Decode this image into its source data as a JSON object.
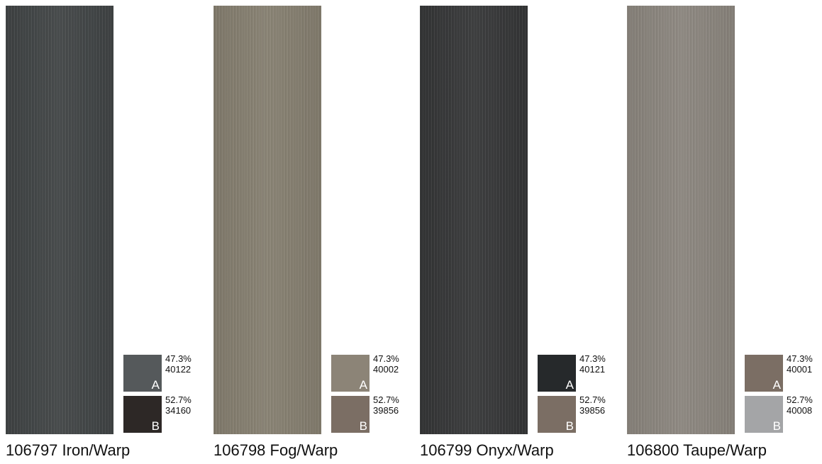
{
  "products": [
    {
      "label": "106797 Iron/Warp",
      "swatch_color": "#3e4243",
      "yarns": [
        {
          "letter": "A",
          "percent": "47.3%",
          "code": "40122",
          "color": "#55595b"
        },
        {
          "letter": "B",
          "percent": "52.7%",
          "code": "34160",
          "color": "#2d2826"
        }
      ]
    },
    {
      "label": "106798 Fog/Warp",
      "swatch_color": "#878070",
      "yarns": [
        {
          "letter": "A",
          "percent": "47.3%",
          "code": "40002",
          "color": "#8c8477"
        },
        {
          "letter": "B",
          "percent": "52.7%",
          "code": "39856",
          "color": "#7b6e64"
        }
      ]
    },
    {
      "label": "106799 Onyx/Warp",
      "swatch_color": "#323334",
      "yarns": [
        {
          "letter": "A",
          "percent": "47.3%",
          "code": "40121",
          "color": "#26292b"
        },
        {
          "letter": "B",
          "percent": "52.7%",
          "code": "39856",
          "color": "#7b6e64"
        }
      ]
    },
    {
      "label": "106800 Taupe/Warp",
      "swatch_color": "#8d877f",
      "yarns": [
        {
          "letter": "A",
          "percent": "47.3%",
          "code": "40001",
          "color": "#7b6e64"
        },
        {
          "letter": "B",
          "percent": "52.7%",
          "code": "40008",
          "color": "#a4a5a7"
        }
      ]
    }
  ]
}
